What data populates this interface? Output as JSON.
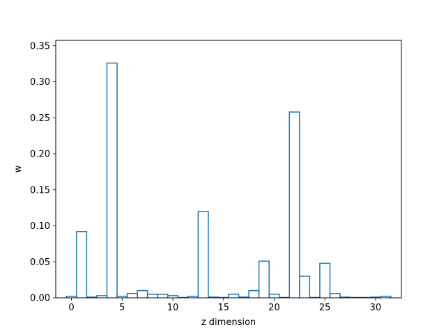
{
  "chart_data": {
    "type": "step",
    "title": "",
    "xlabel": "z dimension",
    "ylabel": "w",
    "xlim": [
      -1.55,
      32.55
    ],
    "ylim": [
      0,
      0.3575
    ],
    "x_ticks": [
      0,
      5,
      10,
      15,
      20,
      25,
      30
    ],
    "y_ticks": [
      0.0,
      0.05,
      0.1,
      0.15,
      0.2,
      0.25,
      0.3,
      0.35
    ],
    "grid": false,
    "legend": "none",
    "color": "#1f77b4",
    "x": [
      0,
      1,
      2,
      3,
      4,
      5,
      6,
      7,
      8,
      9,
      10,
      11,
      12,
      13,
      14,
      15,
      16,
      17,
      18,
      19,
      20,
      21,
      22,
      23,
      24,
      25,
      26,
      27,
      28,
      29,
      30,
      31
    ],
    "values": [
      0.002,
      0.092,
      0.001,
      0.003,
      0.326,
      0.002,
      0.006,
      0.01,
      0.005,
      0.005,
      0.003,
      0.0005,
      0.002,
      0.12,
      0.001,
      0.0005,
      0.005,
      0.001,
      0.01,
      0.051,
      0.005,
      0.0005,
      0.258,
      0.03,
      0.0005,
      0.048,
      0.006,
      0.001,
      0.0005,
      0.0005,
      0.001,
      0.002
    ]
  }
}
